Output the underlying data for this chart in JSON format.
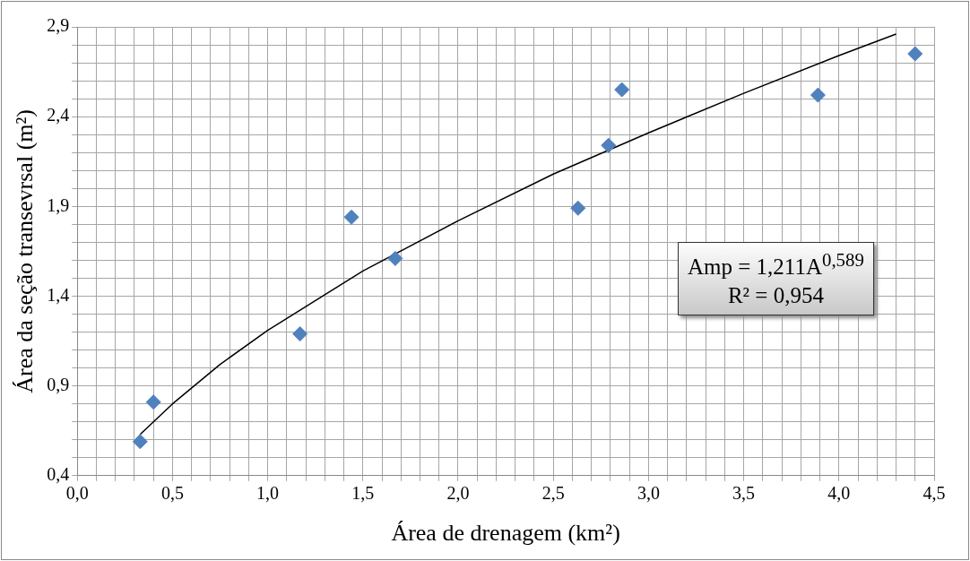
{
  "chart_data": {
    "type": "scatter",
    "xlabel": "Área de drenagem (km²)",
    "ylabel": "Área da seção transevrsal (m²)",
    "xlim": [
      0,
      4.5
    ],
    "xticks": [
      {
        "value": 0,
        "label": "0,0"
      },
      {
        "value": 0.1,
        "label": null
      },
      {
        "value": 0.2,
        "label": null
      },
      {
        "value": 0.3,
        "label": null
      },
      {
        "value": 0.4,
        "label": null
      },
      {
        "value": 0.5,
        "label": "0,5"
      },
      {
        "value": 0.6,
        "label": null
      },
      {
        "value": 0.7,
        "label": null
      },
      {
        "value": 0.8,
        "label": null
      },
      {
        "value": 0.9,
        "label": null
      },
      {
        "value": 1,
        "label": "1,0"
      },
      {
        "value": 1.1,
        "label": null
      },
      {
        "value": 1.2,
        "label": null
      },
      {
        "value": 1.3,
        "label": null
      },
      {
        "value": 1.4,
        "label": null
      },
      {
        "value": 1.5,
        "label": "1,5"
      },
      {
        "value": 1.6,
        "label": null
      },
      {
        "value": 1.7,
        "label": null
      },
      {
        "value": 1.8,
        "label": null
      },
      {
        "value": 1.9,
        "label": null
      },
      {
        "value": 2,
        "label": "2,0"
      },
      {
        "value": 2.1,
        "label": null
      },
      {
        "value": 2.2,
        "label": null
      },
      {
        "value": 2.3,
        "label": null
      },
      {
        "value": 2.4,
        "label": null
      },
      {
        "value": 2.5,
        "label": "2,5"
      },
      {
        "value": 2.6,
        "label": null
      },
      {
        "value": 2.7,
        "label": null
      },
      {
        "value": 2.8,
        "label": null
      },
      {
        "value": 2.9,
        "label": null
      },
      {
        "value": 3,
        "label": "3,0"
      },
      {
        "value": 3.1,
        "label": null
      },
      {
        "value": 3.2,
        "label": null
      },
      {
        "value": 3.3,
        "label": null
      },
      {
        "value": 3.4,
        "label": null
      },
      {
        "value": 3.5,
        "label": "3,5"
      },
      {
        "value": 3.6,
        "label": null
      },
      {
        "value": 3.7,
        "label": null
      },
      {
        "value": 3.8,
        "label": null
      },
      {
        "value": 3.9,
        "label": null
      },
      {
        "value": 4,
        "label": "4,0"
      },
      {
        "value": 4.1,
        "label": null
      },
      {
        "value": 4.2,
        "label": null
      },
      {
        "value": 4.3,
        "label": null
      },
      {
        "value": 4.4,
        "label": null
      },
      {
        "value": 4.5,
        "label": "4,5"
      }
    ],
    "ylim": [
      0.4,
      2.9
    ],
    "yticks": [
      {
        "value": 0.4,
        "label": "0,4"
      },
      {
        "value": 0.5,
        "label": null
      },
      {
        "value": 0.6,
        "label": null
      },
      {
        "value": 0.7,
        "label": null
      },
      {
        "value": 0.8,
        "label": null
      },
      {
        "value": 0.9,
        "label": "0,9"
      },
      {
        "value": 1.0,
        "label": null
      },
      {
        "value": 1.1,
        "label": null
      },
      {
        "value": 1.2,
        "label": null
      },
      {
        "value": 1.3,
        "label": null
      },
      {
        "value": 1.4,
        "label": "1,4"
      },
      {
        "value": 1.5,
        "label": null
      },
      {
        "value": 1.6,
        "label": null
      },
      {
        "value": 1.7,
        "label": null
      },
      {
        "value": 1.8,
        "label": null
      },
      {
        "value": 1.9,
        "label": "1,9"
      },
      {
        "value": 2.0,
        "label": null
      },
      {
        "value": 2.1,
        "label": null
      },
      {
        "value": 2.2,
        "label": null
      },
      {
        "value": 2.3,
        "label": null
      },
      {
        "value": 2.4,
        "label": "2,4"
      },
      {
        "value": 2.5,
        "label": null
      },
      {
        "value": 2.6,
        "label": null
      },
      {
        "value": 2.7,
        "label": null
      },
      {
        "value": 2.8,
        "label": null
      },
      {
        "value": 2.9,
        "label": "2,9"
      }
    ],
    "grid": true,
    "legend": false,
    "marker": "diamond",
    "series": [
      {
        "color": "#4f81bd",
        "x": [
          0.33,
          0.4,
          1.17,
          1.44,
          1.67,
          2.63,
          2.79,
          2.86,
          3.89,
          4.4
        ],
        "values": [
          0.59,
          0.81,
          1.19,
          1.84,
          1.61,
          1.89,
          2.24,
          2.55,
          2.52,
          2.75
        ]
      },
      {
        "type": "line",
        "color": "#000000",
        "marker": "none",
        "line_style": "solid",
        "x": [
          0.33,
          0.5,
          0.75,
          1,
          1.5,
          2,
          2.5,
          3,
          3.5,
          4,
          4.3
        ],
        "values": [
          0.63,
          0.8,
          1.02,
          1.21,
          1.54,
          1.82,
          2.08,
          2.31,
          2.53,
          2.74,
          2.86
        ]
      }
    ],
    "annotations": [
      "Amp = 1,211A$^{0,589}$",
      "R² = 0,954"
    ]
  }
}
